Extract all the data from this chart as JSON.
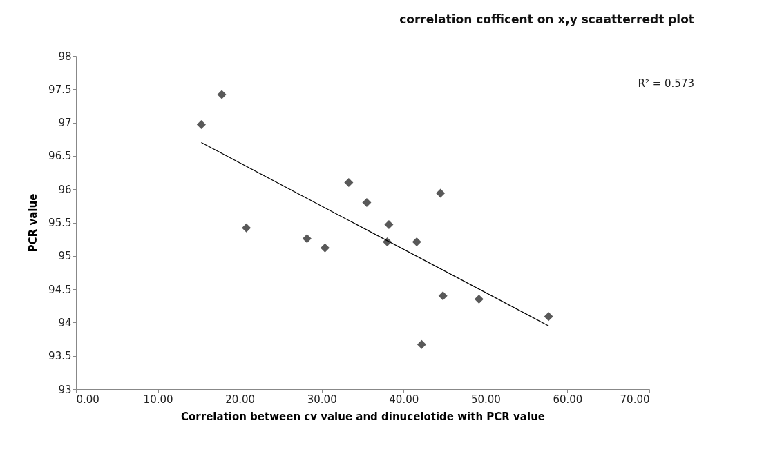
{
  "chart_data": {
    "type": "scatter",
    "title": "correlation cofficent on x,y scaatterredt plot",
    "xlabel": "Correlation between cv value and   dinucelotide with  PCR value",
    "ylabel": "PCR  value",
    "series": [
      {
        "type": "scatter",
        "marker": "diamond",
        "color": "#595959",
        "x": [
          15.3,
          17.8,
          20.8,
          28.2,
          30.4,
          33.3,
          35.5,
          38.2,
          38.0,
          41.6,
          44.5,
          44.8,
          42.2,
          49.2,
          57.7
        ],
        "values": [
          96.97,
          97.42,
          95.42,
          95.26,
          95.12,
          96.1,
          95.8,
          95.47,
          95.21,
          95.21,
          95.94,
          94.4,
          93.67,
          94.35,
          94.09
        ]
      },
      {
        "type": "line",
        "marker": "none",
        "color": "#000000",
        "x": [
          15.3,
          57.7
        ],
        "values": [
          96.7,
          93.95
        ]
      }
    ],
    "annotations": [
      "R² = 0.573"
    ],
    "grid": false,
    "legend": false,
    "xlim": [
      0,
      70
    ],
    "xticks": [
      {
        "value": 0,
        "label": "0.00"
      },
      {
        "value": 10,
        "label": "10.00"
      },
      {
        "value": 20,
        "label": "20.00"
      },
      {
        "value": 30,
        "label": "30.00"
      },
      {
        "value": 40,
        "label": "40.00"
      },
      {
        "value": 50,
        "label": "50.00"
      },
      {
        "value": 60,
        "label": "60.00"
      },
      {
        "value": 70,
        "label": "70.00"
      }
    ],
    "ylim": [
      93,
      98
    ],
    "yticks": [
      93,
      93.5,
      94,
      94.5,
      95,
      95.5,
      96,
      96.5,
      97,
      97.5,
      98
    ]
  }
}
